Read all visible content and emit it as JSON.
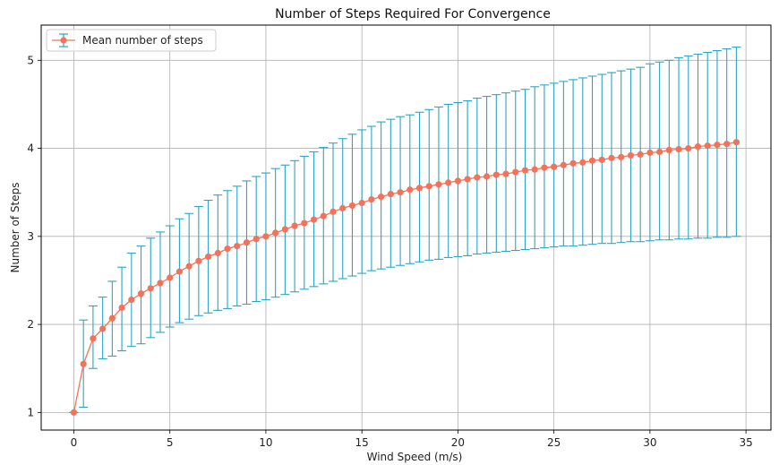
{
  "chart_data": {
    "type": "line",
    "title": "Number of Steps Required For Convergence",
    "xlabel": "Wind Speed (m/s)",
    "ylabel": "Number of Steps",
    "xlim": [
      -1.7,
      36.3
    ],
    "ylim": [
      0.8,
      5.4
    ],
    "xticks": [
      0,
      5,
      10,
      15,
      20,
      25,
      30,
      35
    ],
    "yticks": [
      1,
      2,
      3,
      4,
      5
    ],
    "grid": true,
    "legend_position": "upper-left",
    "series": [
      {
        "name": "Mean number of steps",
        "line_color": "#f4715a",
        "errorbar_color": "#2aa5c6",
        "x": [
          0,
          0.5,
          1.0,
          1.5,
          2.0,
          2.5,
          3.0,
          3.5,
          4.0,
          4.5,
          5.0,
          5.5,
          6.0,
          6.5,
          7.0,
          7.5,
          8.0,
          8.5,
          9.0,
          9.5,
          10.0,
          10.5,
          11.0,
          11.5,
          12.0,
          12.5,
          13.0,
          13.5,
          14.0,
          14.5,
          15.0,
          15.5,
          16.0,
          16.5,
          17.0,
          17.5,
          18.0,
          18.5,
          19.0,
          19.5,
          20.0,
          20.5,
          21.0,
          21.5,
          22.0,
          22.5,
          23.0,
          23.5,
          24.0,
          24.5,
          25.0,
          25.5,
          26.0,
          26.5,
          27.0,
          27.5,
          28.0,
          28.5,
          29.0,
          29.5,
          30.0,
          30.5,
          31.0,
          31.5,
          32.0,
          32.5,
          33.0,
          33.5,
          34.0,
          34.5
        ],
        "mean": [
          1.0,
          1.55,
          1.84,
          1.95,
          2.07,
          2.19,
          2.28,
          2.35,
          2.41,
          2.47,
          2.53,
          2.6,
          2.66,
          2.72,
          2.77,
          2.81,
          2.86,
          2.89,
          2.93,
          2.97,
          3.0,
          3.04,
          3.08,
          3.12,
          3.15,
          3.19,
          3.23,
          3.28,
          3.32,
          3.35,
          3.38,
          3.42,
          3.45,
          3.48,
          3.5,
          3.53,
          3.55,
          3.57,
          3.59,
          3.61,
          3.63,
          3.65,
          3.67,
          3.68,
          3.7,
          3.71,
          3.73,
          3.75,
          3.76,
          3.78,
          3.79,
          3.81,
          3.83,
          3.84,
          3.86,
          3.87,
          3.89,
          3.9,
          3.92,
          3.93,
          3.95,
          3.96,
          3.98,
          3.99,
          4.0,
          4.02,
          4.03,
          4.04,
          4.05,
          4.07
        ],
        "lower": [
          1.0,
          1.06,
          1.5,
          1.61,
          1.64,
          1.7,
          1.75,
          1.78,
          1.85,
          1.91,
          1.97,
          2.02,
          2.06,
          2.1,
          2.13,
          2.16,
          2.18,
          2.21,
          2.23,
          2.26,
          2.28,
          2.31,
          2.34,
          2.37,
          2.4,
          2.43,
          2.46,
          2.49,
          2.52,
          2.55,
          2.58,
          2.61,
          2.63,
          2.65,
          2.67,
          2.69,
          2.71,
          2.73,
          2.74,
          2.76,
          2.77,
          2.78,
          2.8,
          2.81,
          2.82,
          2.83,
          2.84,
          2.85,
          2.86,
          2.87,
          2.88,
          2.89,
          2.89,
          2.9,
          2.91,
          2.92,
          2.92,
          2.93,
          2.94,
          2.94,
          2.95,
          2.96,
          2.96,
          2.97,
          2.97,
          2.98,
          2.98,
          2.99,
          2.99,
          3.0
        ],
        "upper": [
          1.0,
          2.05,
          2.21,
          2.31,
          2.49,
          2.65,
          2.81,
          2.89,
          2.98,
          3.05,
          3.12,
          3.2,
          3.26,
          3.34,
          3.41,
          3.47,
          3.52,
          3.57,
          3.63,
          3.68,
          3.72,
          3.77,
          3.81,
          3.86,
          3.91,
          3.96,
          4.01,
          4.06,
          4.11,
          4.16,
          4.21,
          4.25,
          4.3,
          4.33,
          4.36,
          4.38,
          4.41,
          4.44,
          4.47,
          4.5,
          4.52,
          4.54,
          4.57,
          4.59,
          4.61,
          4.63,
          4.65,
          4.67,
          4.7,
          4.72,
          4.74,
          4.76,
          4.78,
          4.8,
          4.82,
          4.84,
          4.86,
          4.88,
          4.9,
          4.92,
          4.96,
          4.98,
          5.0,
          5.03,
          5.05,
          5.07,
          5.09,
          5.11,
          5.13,
          5.15
        ]
      }
    ]
  }
}
